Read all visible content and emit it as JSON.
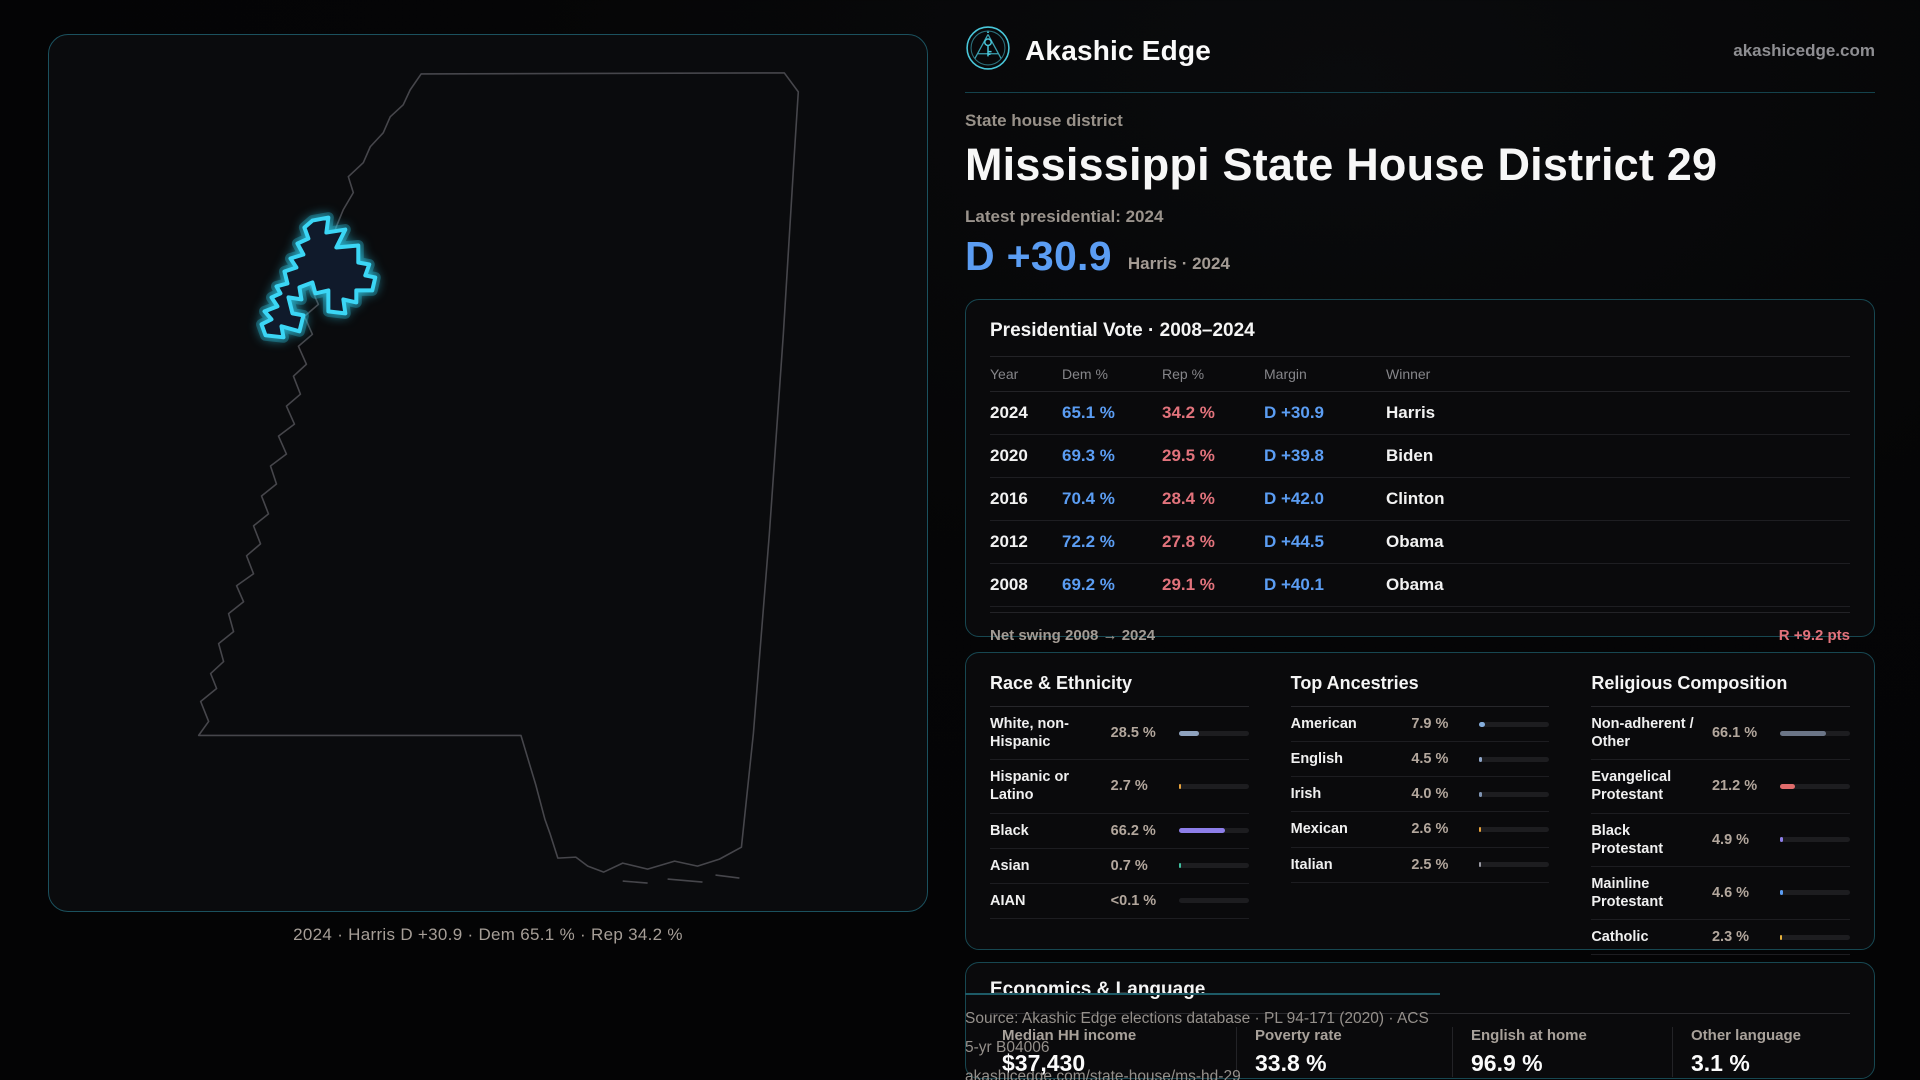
{
  "brand": {
    "name": "Akashic Edge",
    "domain": "akashicedge.com"
  },
  "page": {
    "eyebrow": "State house district",
    "title": "Mississippi State House District 29",
    "latest_label": "Latest presidential: 2024",
    "headline_margin": "D +30.9",
    "headline_sub": "Harris · 2024"
  },
  "map": {
    "caption": "2024 · Harris D +30.9 · Dem 65.1 % · Rep 34.2 %"
  },
  "presidential": {
    "title": "Presidential Vote · 2008–2024",
    "columns": [
      "Year",
      "Dem %",
      "Rep %",
      "Margin",
      "Winner"
    ],
    "rows": [
      {
        "year": "2024",
        "dem": "65.1 %",
        "rep": "34.2 %",
        "margin": "D +30.9",
        "winner": "Harris"
      },
      {
        "year": "2020",
        "dem": "69.3 %",
        "rep": "29.5 %",
        "margin": "D +39.8",
        "winner": "Biden"
      },
      {
        "year": "2016",
        "dem": "70.4 %",
        "rep": "28.4 %",
        "margin": "D +42.0",
        "winner": "Clinton"
      },
      {
        "year": "2012",
        "dem": "72.2 %",
        "rep": "27.8 %",
        "margin": "D +44.5",
        "winner": "Obama"
      },
      {
        "year": "2008",
        "dem": "69.2 %",
        "rep": "29.1 %",
        "margin": "D +40.1",
        "winner": "Obama"
      }
    ],
    "net_swing_label": "Net swing 2008 → 2024",
    "net_swing_value": "R +9.2 pts"
  },
  "demographics": {
    "race": {
      "title": "Race & Ethnicity",
      "rows": [
        {
          "label": "White, non-Hispanic",
          "value": "28.5 %",
          "pct": 28.5,
          "color": "#8fa3bf"
        },
        {
          "label": "Hispanic or Latino",
          "value": "2.7 %",
          "pct": 2.7,
          "color": "#e8a33d"
        },
        {
          "label": "Black",
          "value": "66.2 %",
          "pct": 66.2,
          "color": "#8d7ee9"
        },
        {
          "label": "Asian",
          "value": "0.7 %",
          "pct": 0.7,
          "color": "#3fbf9f"
        },
        {
          "label": "AIAN",
          "value": "<0.1 %",
          "pct": 0,
          "color": "#9a9aa3"
        }
      ]
    },
    "ancestries": {
      "title": "Top Ancestries",
      "rows": [
        {
          "label": "American",
          "value": "7.9 %",
          "pct": 7.9,
          "color": "#85aedd"
        },
        {
          "label": "English",
          "value": "4.5 %",
          "pct": 4.5,
          "color": "#8fa6c9"
        },
        {
          "label": "Irish",
          "value": "4.0 %",
          "pct": 4.0,
          "color": "#7f94b3"
        },
        {
          "label": "Mexican",
          "value": "2.6 %",
          "pct": 2.6,
          "color": "#e8a33d"
        },
        {
          "label": "Italian",
          "value": "2.5 %",
          "pct": 2.5,
          "color": "#9a9aa3"
        }
      ]
    },
    "religion": {
      "title": "Religious Composition",
      "rows": [
        {
          "label": "Non-adherent / Other",
          "value": "66.1 %",
          "pct": 66.1,
          "color": "#6b7587"
        },
        {
          "label": "Evangelical Protestant",
          "value": "21.2 %",
          "pct": 21.2,
          "color": "#e06c6c"
        },
        {
          "label": "Black Protestant",
          "value": "4.9 %",
          "pct": 4.9,
          "color": "#8d7ee9"
        },
        {
          "label": "Mainline Protestant",
          "value": "4.6 %",
          "pct": 4.6,
          "color": "#5b9df3"
        },
        {
          "label": "Catholic",
          "value": "2.3 %",
          "pct": 2.3,
          "color": "#e8b33d"
        }
      ]
    }
  },
  "economics": {
    "title": "Economics & Language",
    "stats": [
      {
        "label": "Median HH income",
        "value": "$37,430"
      },
      {
        "label": "Poverty rate",
        "value": "33.8 %"
      },
      {
        "label": "English at home",
        "value": "96.9 %"
      },
      {
        "label": "Other language",
        "value": "3.1 %"
      }
    ]
  },
  "footer": {
    "line1": "Source: Akashic Edge elections database · PL 94-171 (2020) · ACS 5-yr B04006",
    "line2": "akashicedge.com/state-house/ms-hd-29"
  },
  "colors": {
    "accent_cyan": "#35d5f2",
    "dem_blue": "#5b9df3",
    "rep_red": "#e2737c",
    "panel_border": "#174751"
  }
}
